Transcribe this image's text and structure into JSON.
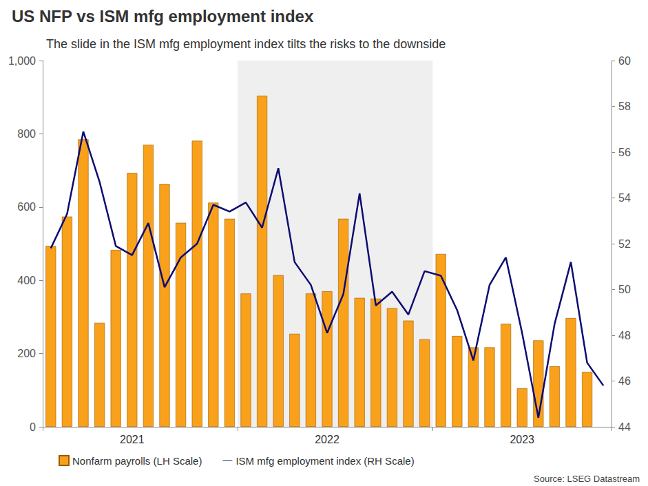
{
  "chart_data": {
    "type": "bar",
    "title": "US NFP vs ISM mfg employment index",
    "subtitle": "The slide in the ISM mfg employment index tilts the risks to the downside",
    "source": "Source: LSEG Datastream",
    "categories": [
      null,
      null,
      null,
      null,
      null,
      "2021",
      null,
      null,
      null,
      null,
      null,
      null,
      null,
      null,
      null,
      null,
      null,
      "2022",
      null,
      null,
      null,
      null,
      null,
      null,
      null,
      null,
      null,
      null,
      null,
      "2023",
      null,
      null,
      null,
      null,
      null
    ],
    "series": [
      {
        "name": "Nonfarm payrolls (LH Scale)",
        "type": "bar",
        "color": "#f9a11b",
        "values": [
          494,
          574,
          785,
          284,
          483,
          693,
          770,
          663,
          557,
          781,
          612,
          568,
          364,
          904,
          414,
          254,
          364,
          370,
          568,
          352,
          350,
          324,
          290,
          239,
          472,
          248,
          217,
          217,
          281,
          105,
          236,
          165,
          297,
          150,
          null
        ]
      },
      {
        "name": "ISM mfg employment index (RH Scale)",
        "type": "line",
        "axis": "y2",
        "color": "#0c0c72",
        "marker": "none",
        "values": [
          51.8,
          53.3,
          56.9,
          54.7,
          51.9,
          51.5,
          52.9,
          50.1,
          51.4,
          52.0,
          53.7,
          53.4,
          53.8,
          52.7,
          55.3,
          51.2,
          50.2,
          48.1,
          49.8,
          54.2,
          49.3,
          49.9,
          48.9,
          50.8,
          50.6,
          49.1,
          46.9,
          50.2,
          51.4,
          48.1,
          44.4,
          48.5,
          51.2,
          46.8,
          45.8
        ]
      }
    ],
    "ylim": [
      0,
      1000
    ],
    "yticks": [
      0,
      200,
      400,
      600,
      800,
      1000
    ],
    "y2lim": [
      44,
      60
    ],
    "y2ticks": [
      44,
      46,
      48,
      50,
      52,
      54,
      56,
      58,
      60
    ],
    "grid": false,
    "legend": "bottom"
  }
}
